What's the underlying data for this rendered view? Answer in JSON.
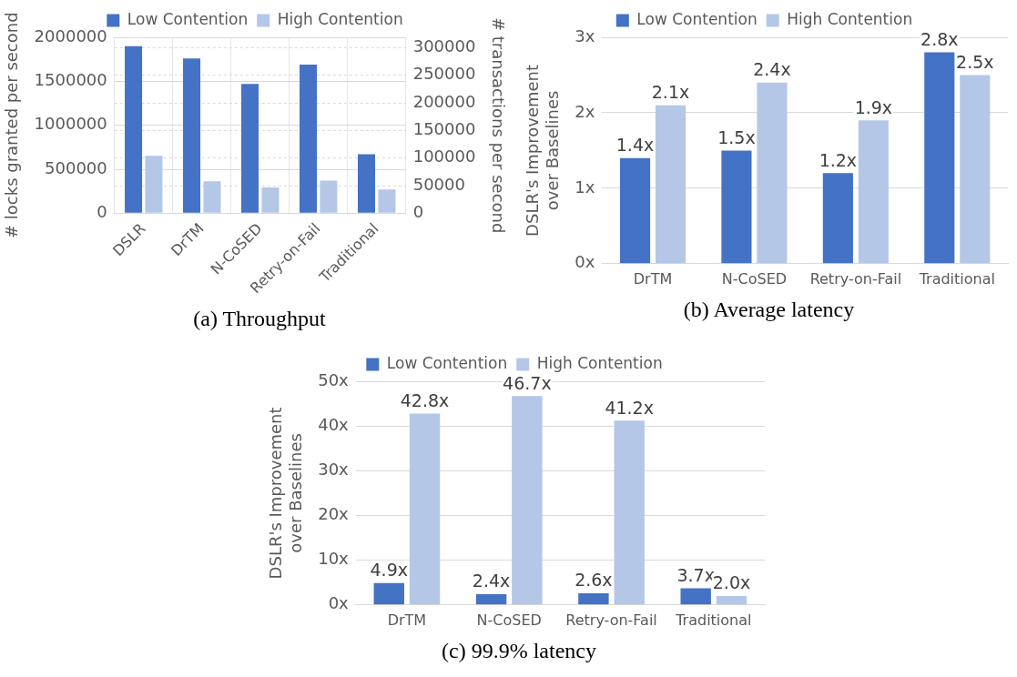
{
  "chart_data": [
    {
      "type": "bar",
      "categories": [
        "DSLR",
        "DrTM",
        "N-CoSED",
        "Retry-on-Fail",
        "Traditional"
      ],
      "ylabel": "# locks granted per second",
      "y2label": "# transactions per second",
      "ylim": [
        0,
        2000000
      ],
      "yticks": [
        0,
        500000,
        1000000,
        1500000,
        2000000
      ],
      "y2lim": [
        0,
        319000
      ],
      "y2ticks": [
        0,
        50000,
        100000,
        150000,
        200000,
        250000,
        300000
      ],
      "grid": true,
      "legend": "top",
      "annotations": [
        "(a) Throughput"
      ],
      "series": [
        {
          "name": "Low Contention",
          "color": "#4472c4",
          "values": [
            1900000,
            1760000,
            1470000,
            1690000,
            670000
          ]
        },
        {
          "name": "High Contention",
          "color": "#b4c7e7",
          "axis": "y2",
          "values": [
            104000,
            58000,
            47000,
            59000,
            43000
          ]
        }
      ]
    },
    {
      "type": "bar",
      "categories": [
        "DrTM",
        "N-CoSED",
        "Retry-on-Fail",
        "Traditional"
      ],
      "ylabel": "DSLR's Improvement over Baselines",
      "ylim": [
        0,
        3
      ],
      "yticks": [
        {
          "value": 0,
          "label": "0x"
        },
        {
          "value": 1,
          "label": "1x"
        },
        {
          "value": 2,
          "label": "2x"
        },
        {
          "value": 3,
          "label": "3x"
        }
      ],
      "grid": "y",
      "legend": "top",
      "annotations": [
        "(b) Average latency"
      ],
      "series": [
        {
          "name": "Low Contention",
          "color": "#4472c4",
          "values": [
            1.4,
            1.5,
            1.2,
            2.8
          ],
          "value_labels": [
            "1.4x",
            "1.5x",
            "1.2x",
            "2.8x"
          ]
        },
        {
          "name": "High Contention",
          "color": "#b4c7e7",
          "values": [
            2.1,
            2.4,
            1.9,
            2.5
          ],
          "value_labels": [
            "2.1x",
            "2.4x",
            "1.9x",
            "2.5x"
          ]
        }
      ]
    },
    {
      "type": "bar",
      "categories": [
        "DrTM",
        "N-CoSED",
        "Retry-on-Fail",
        "Traditional"
      ],
      "ylabel": "DSLR's Improvement over Baselines",
      "ylim": [
        0,
        50
      ],
      "yticks": [
        {
          "value": 0,
          "label": "0x"
        },
        {
          "value": 10,
          "label": "10x"
        },
        {
          "value": 20,
          "label": "20x"
        },
        {
          "value": 30,
          "label": "30x"
        },
        {
          "value": 40,
          "label": "40x"
        },
        {
          "value": 50,
          "label": "50x"
        }
      ],
      "grid": "y",
      "legend": "top",
      "annotations": [
        "(c) 99.9% latency"
      ],
      "series": [
        {
          "name": "Low Contention",
          "color": "#4472c4",
          "values": [
            4.9,
            2.4,
            2.6,
            3.7
          ],
          "value_labels": [
            "4.9x",
            "2.4x",
            "2.6x",
            "3.7x"
          ]
        },
        {
          "name": "High Contention",
          "color": "#b4c7e7",
          "values": [
            42.8,
            46.7,
            41.2,
            2.0
          ],
          "value_labels": [
            "42.8x",
            "46.7x",
            "41.2x",
            "2.0x"
          ]
        }
      ]
    }
  ]
}
